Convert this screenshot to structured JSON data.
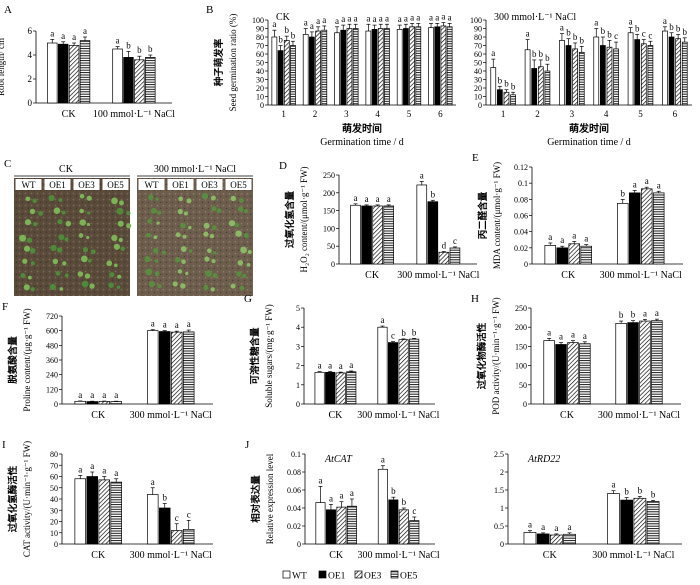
{
  "legend": {
    "entries": [
      {
        "key": "WT",
        "label": "WT",
        "fill": "white"
      },
      {
        "key": "OE1",
        "label": "OE1",
        "fill": "black"
      },
      {
        "key": "OE3",
        "label": "OE3",
        "fill": "diag"
      },
      {
        "key": "OE5",
        "label": "OE5",
        "fill": "horiz"
      }
    ]
  },
  "photo": {
    "letter": "C",
    "left_title": "CK",
    "right_title": "300 mmol·L⁻¹ NaCl",
    "left_cols": [
      "WT",
      "OE1",
      "OE3",
      "OE5"
    ],
    "right_cols": [
      "WT",
      "OE1",
      "OE3",
      "OE5"
    ]
  },
  "chart_data": [
    {
      "id": "A",
      "type": "bar",
      "letter": "A",
      "ylabel_cn": "根长",
      "ylabel_en": "Root length/ cm",
      "ylim": [
        0,
        6
      ],
      "yticks": [
        0,
        2,
        4,
        6
      ],
      "groups": [
        "CK",
        "100 mmol·L⁻¹ NaCl"
      ],
      "series": [
        {
          "name": "WT",
          "values": [
            5.0,
            4.5
          ],
          "err": [
            0.3,
            0.2
          ],
          "letters": [
            "a",
            "a"
          ]
        },
        {
          "name": "OE1",
          "values": [
            4.9,
            3.8
          ],
          "err": [
            0.2,
            0.5
          ],
          "letters": [
            "a",
            "b"
          ]
        },
        {
          "name": "OE3",
          "values": [
            4.8,
            3.6
          ],
          "err": [
            0.2,
            0.3
          ],
          "letters": [
            "a",
            "b"
          ]
        },
        {
          "name": "OE5",
          "values": [
            5.2,
            3.8
          ],
          "err": [
            0.3,
            0.2
          ],
          "letters": [
            "a",
            "b"
          ]
        }
      ]
    },
    {
      "id": "B1",
      "type": "bar",
      "letter": "B",
      "title": "CK",
      "ylabel_cn": "种子萌发率",
      "ylabel_en": "Seed germination ratio (%)",
      "xlabel_cn": "萌发时间",
      "xlabel_en": "Germination time / d",
      "ylim": [
        0,
        100
      ],
      "yticks": [
        0,
        10,
        20,
        30,
        40,
        50,
        60,
        70,
        80,
        90,
        100
      ],
      "groups": [
        "1",
        "2",
        "3",
        "4",
        "5",
        "6"
      ],
      "series": [
        {
          "name": "WT",
          "values": [
            80,
            83,
            85,
            87,
            89,
            91
          ],
          "err": [
            8,
            7,
            7,
            8,
            5,
            5
          ],
          "letters": [
            "a",
            "a",
            "a",
            "a",
            "a",
            "a"
          ]
        },
        {
          "name": "OE1",
          "values": [
            64,
            80,
            88,
            89,
            90,
            92
          ],
          "err": [
            6,
            6,
            6,
            5,
            5,
            4
          ],
          "letters": [
            "b",
            "a",
            "a",
            "a",
            "a",
            "a"
          ]
        },
        {
          "name": "OE3",
          "values": [
            76,
            87,
            90,
            90,
            92,
            93
          ],
          "err": [
            5,
            5,
            5,
            5,
            4,
            4
          ],
          "letters": [
            "b",
            "a",
            "a",
            "a",
            "a",
            "a"
          ]
        },
        {
          "name": "OE5",
          "values": [
            70,
            88,
            90,
            90,
            92,
            92
          ],
          "err": [
            5,
            5,
            5,
            5,
            4,
            4
          ],
          "letters": [
            "b",
            "a",
            "a",
            "a",
            "a",
            "a"
          ]
        }
      ]
    },
    {
      "id": "B2",
      "type": "bar",
      "letter": "",
      "title": "300 mmol·L⁻¹ NaCl",
      "xlabel_cn": "萌发时间",
      "xlabel_en": "Germination time / d",
      "ylim": [
        0,
        100
      ],
      "yticks": [
        0,
        10,
        20,
        30,
        40,
        50,
        60,
        70,
        80,
        90,
        100
      ],
      "groups": [
        "1",
        "2",
        "3",
        "4",
        "5",
        "6"
      ],
      "series": [
        {
          "name": "WT",
          "values": [
            44,
            65,
            76,
            80,
            85,
            87
          ],
          "err": [
            10,
            12,
            8,
            10,
            6,
            5
          ],
          "letters": [
            "a",
            "a",
            "a",
            "a",
            "a",
            "a"
          ]
        },
        {
          "name": "OE1",
          "values": [
            18,
            43,
            70,
            70,
            77,
            80
          ],
          "err": [
            4,
            10,
            8,
            10,
            6,
            5
          ],
          "letters": [
            "b",
            "b",
            "b",
            "b",
            "b",
            "b"
          ]
        },
        {
          "name": "OE3",
          "values": [
            15,
            45,
            66,
            68,
            72,
            78
          ],
          "err": [
            3,
            8,
            7,
            8,
            5,
            5
          ],
          "letters": [
            "b",
            "b",
            "b",
            "b",
            "c",
            "b"
          ]
        },
        {
          "name": "OE5",
          "values": [
            12,
            40,
            62,
            66,
            70,
            74
          ],
          "err": [
            3,
            8,
            7,
            8,
            5,
            5
          ],
          "letters": [
            "b",
            "b",
            "b",
            "c",
            "c",
            "b"
          ]
        }
      ]
    },
    {
      "id": "D",
      "type": "bar",
      "letter": "D",
      "ylabel_cn": "过氧化氢含量",
      "ylabel_en": "H₂O₂ content/(μmol·g⁻¹ FW)",
      "ylim": [
        0,
        250
      ],
      "yticks": [
        0,
        50,
        100,
        150,
        200,
        250
      ],
      "groups": [
        "CK",
        "300 mmol·L⁻¹ NaCl"
      ],
      "series": [
        {
          "name": "WT",
          "values": [
            165,
            222
          ],
          "err": [
            4,
            10
          ],
          "letters": [
            "a",
            "a"
          ]
        },
        {
          "name": "OE1",
          "values": [
            163,
            175
          ],
          "err": [
            3,
            4
          ],
          "letters": [
            "a",
            "b"
          ]
        },
        {
          "name": "OE3",
          "values": [
            163,
            33
          ],
          "err": [
            3,
            2
          ],
          "letters": [
            "a",
            "d"
          ]
        },
        {
          "name": "OE5",
          "values": [
            163,
            45
          ],
          "err": [
            3,
            3
          ],
          "letters": [
            "a",
            "c"
          ]
        }
      ]
    },
    {
      "id": "E",
      "type": "bar",
      "letter": "E",
      "ylabel_cn": "丙二醛含量",
      "ylabel_en": "MDA content/(μmol·g⁻¹ FW)",
      "ylim": [
        0,
        0.12
      ],
      "yticks": [
        0,
        0.02,
        0.04,
        0.06,
        0.08,
        0.1,
        0.12
      ],
      "groups": [
        "CK",
        "300 mmol·L⁻¹ NaCl"
      ],
      "series": [
        {
          "name": "WT",
          "values": [
            0.023,
            0.075
          ],
          "err": [
            0.003,
            0.005
          ],
          "letters": [
            "a",
            "b"
          ]
        },
        {
          "name": "OE1",
          "values": [
            0.02,
            0.088
          ],
          "err": [
            0.002,
            0.003
          ],
          "letters": [
            "a",
            "a"
          ]
        },
        {
          "name": "OE3",
          "values": [
            0.025,
            0.093
          ],
          "err": [
            0.003,
            0.002
          ],
          "letters": [
            "a",
            "a"
          ]
        },
        {
          "name": "OE5",
          "values": [
            0.022,
            0.088
          ],
          "err": [
            0.002,
            0.002
          ],
          "letters": [
            "a",
            "a"
          ]
        }
      ]
    },
    {
      "id": "F",
      "type": "bar",
      "letter": "F",
      "ylabel_cn": "脱氨酸含量",
      "ylabel_en": "Proline content/(μg·g⁻¹ FW)",
      "ylim": [
        0,
        720
      ],
      "yticks": [
        0,
        120,
        240,
        360,
        480,
        600,
        720
      ],
      "groups": [
        "CK",
        "300 mmol·L⁻¹ NaCl"
      ],
      "series": [
        {
          "name": "WT",
          "values": [
            22,
            600
          ],
          "err": [
            3,
            8
          ],
          "letters": [
            "a",
            "a"
          ]
        },
        {
          "name": "OE1",
          "values": [
            20,
            593
          ],
          "err": [
            3,
            8
          ],
          "letters": [
            "a",
            "a"
          ]
        },
        {
          "name": "OE3",
          "values": [
            21,
            588
          ],
          "err": [
            3,
            8
          ],
          "letters": [
            "a",
            "a"
          ]
        },
        {
          "name": "OE5",
          "values": [
            20,
            590
          ],
          "err": [
            3,
            15
          ],
          "letters": [
            "a",
            "a"
          ]
        }
      ]
    },
    {
      "id": "G",
      "type": "bar",
      "letter": "G",
      "ylabel_cn": "可溶性糖含量",
      "ylabel_en": "Soluble sugars/(mg·g⁻¹ FW)",
      "ylim": [
        0,
        5
      ],
      "yticks": [
        0,
        1,
        2,
        3,
        4,
        5
      ],
      "groups": [
        "CK",
        "300 mmol·L⁻¹ NaCl"
      ],
      "series": [
        {
          "name": "WT",
          "values": [
            1.65,
            4.0
          ],
          "err": [
            0.04,
            0.06
          ],
          "letters": [
            "a",
            "a"
          ]
        },
        {
          "name": "OE1",
          "values": [
            1.65,
            3.2
          ],
          "err": [
            0.04,
            0.05
          ],
          "letters": [
            "a",
            "c"
          ]
        },
        {
          "name": "OE3",
          "values": [
            1.62,
            3.35
          ],
          "err": [
            0.04,
            0.04
          ],
          "letters": [
            "a",
            "b"
          ]
        },
        {
          "name": "OE5",
          "values": [
            1.68,
            3.38
          ],
          "err": [
            0.04,
            0.04
          ],
          "letters": [
            "a",
            "b"
          ]
        }
      ]
    },
    {
      "id": "H",
      "type": "bar",
      "letter": "H",
      "ylabel_cn": "过氧化物酶活性",
      "ylabel_en": "POD activity/(U·min⁻¹·g⁻¹ FW)",
      "ylim": [
        0,
        250
      ],
      "yticks": [
        0,
        50,
        100,
        150,
        200,
        250
      ],
      "groups": [
        "CK",
        "300 mmol·L⁻¹ NaCl"
      ],
      "series": [
        {
          "name": "WT",
          "values": [
            165,
            210
          ],
          "err": [
            6,
            6
          ],
          "letters": [
            "a",
            "b"
          ]
        },
        {
          "name": "OE1",
          "values": [
            155,
            212
          ],
          "err": [
            5,
            5
          ],
          "letters": [
            "a",
            "b"
          ]
        },
        {
          "name": "OE3",
          "values": [
            160,
            216
          ],
          "err": [
            5,
            4
          ],
          "letters": [
            "a",
            "a"
          ]
        },
        {
          "name": "OE5",
          "values": [
            157,
            217
          ],
          "err": [
            5,
            4
          ],
          "letters": [
            "a",
            "a"
          ]
        }
      ]
    },
    {
      "id": "I",
      "type": "bar",
      "letter": "I",
      "ylabel_cn": "过氧化氢酶活性",
      "ylabel_en": "CAT activity/(U·min⁻¹·g⁻¹ FW)",
      "ylim": [
        0,
        80
      ],
      "yticks": [
        0,
        10,
        20,
        30,
        40,
        50,
        60,
        70,
        80
      ],
      "groups": [
        "CK",
        "300 mmol·L⁻¹ NaCl"
      ],
      "series": [
        {
          "name": "WT",
          "values": [
            58,
            44
          ],
          "err": [
            3,
            6
          ],
          "letters": [
            "a",
            "a"
          ]
        },
        {
          "name": "OE1",
          "values": [
            60,
            32
          ],
          "err": [
            4,
            4
          ],
          "letters": [
            "a",
            "b"
          ]
        },
        {
          "name": "OE3",
          "values": [
            57,
            12
          ],
          "err": [
            3,
            6
          ],
          "letters": [
            "a",
            "c"
          ]
        },
        {
          "name": "OE5",
          "values": [
            55,
            13
          ],
          "err": [
            3,
            8
          ],
          "letters": [
            "a",
            "c"
          ]
        }
      ]
    },
    {
      "id": "J1",
      "type": "bar",
      "letter": "J",
      "title": "AtCAT",
      "ylabel_cn": "相对表达量",
      "ylabel_en": "Relative expression level",
      "ylim": [
        0,
        0.1
      ],
      "yticks": [
        0,
        0.02,
        0.04,
        0.06,
        0.08,
        0.1
      ],
      "groups": [
        "CK",
        "300 mmol·L⁻¹ NaCl"
      ],
      "series": [
        {
          "name": "WT",
          "values": [
            0.046,
            0.083
          ],
          "err": [
            0.018,
            0.004
          ],
          "letters": [
            "a",
            "a"
          ]
        },
        {
          "name": "OE1",
          "values": [
            0.038,
            0.049
          ],
          "err": [
            0.006,
            0.003
          ],
          "letters": [
            "a",
            "b"
          ]
        },
        {
          "name": "OE3",
          "values": [
            0.041,
            0.038
          ],
          "err": [
            0.006,
            0.002
          ],
          "letters": [
            "a",
            "b"
          ]
        },
        {
          "name": "OE5",
          "values": [
            0.042,
            0.026
          ],
          "err": [
            0.008,
            0.004
          ],
          "letters": [
            "a",
            "c"
          ]
        }
      ]
    },
    {
      "id": "J2",
      "type": "bar",
      "letter": "",
      "title": "AtRD22",
      "ylim": [
        0,
        2.5
      ],
      "yticks": [
        0,
        0.5,
        1,
        1.5,
        2,
        2.5
      ],
      "groups": [
        "CK",
        "300 mmol·L⁻¹ NaCl"
      ],
      "series": [
        {
          "name": "WT",
          "values": [
            0.32,
            1.4
          ],
          "err": [
            0.05,
            0.08
          ],
          "letters": [
            "a",
            "a"
          ]
        },
        {
          "name": "OE1",
          "values": [
            0.28,
            1.22
          ],
          "err": [
            0.03,
            0.07
          ],
          "letters": [
            "a",
            "b"
          ]
        },
        {
          "name": "OE3",
          "values": [
            0.25,
            1.27
          ],
          "err": [
            0.03,
            0.05
          ],
          "letters": [
            "a",
            "b"
          ]
        },
        {
          "name": "OE5",
          "values": [
            0.27,
            1.18
          ],
          "err": [
            0.04,
            0.03
          ],
          "letters": [
            "a",
            "b"
          ]
        }
      ]
    }
  ]
}
